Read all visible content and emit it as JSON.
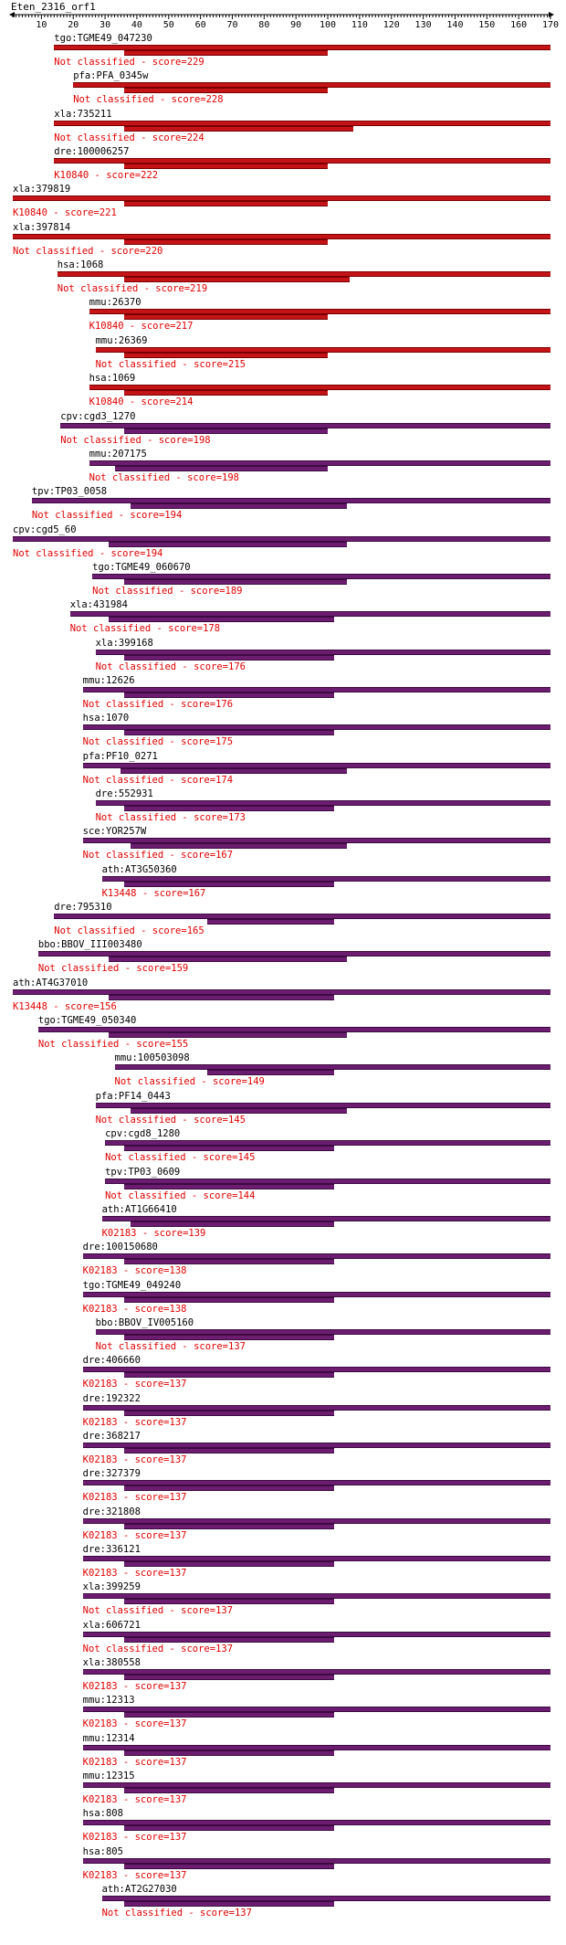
{
  "title": "Eten_2316_orf1",
  "axis": {
    "min": 1,
    "max": 170,
    "ticks": [
      10,
      20,
      30,
      40,
      50,
      60,
      70,
      80,
      90,
      100,
      110,
      120,
      130,
      140,
      150,
      160,
      170
    ]
  },
  "colors": {
    "label": "#e00000",
    "red_bar": "#c41418",
    "purple_bar": "#6c1d70"
  },
  "hits": [
    {
      "name": "tgo:TGME49_047230",
      "class": "Not classified",
      "score": 229,
      "s": 14,
      "e": 170,
      "qs": 36,
      "qe": 100,
      "color": "red"
    },
    {
      "name": "pfa:PFA_0345w",
      "class": "Not classified",
      "score": 228,
      "s": 20,
      "e": 170,
      "qs": 36,
      "qe": 100,
      "color": "red"
    },
    {
      "name": "xla:735211",
      "class": "Not classified",
      "score": 224,
      "s": 14,
      "e": 170,
      "qs": 36,
      "qe": 108,
      "color": "red"
    },
    {
      "name": "dre:100006257",
      "class": "K10840",
      "score": 222,
      "s": 14,
      "e": 170,
      "qs": 36,
      "qe": 100,
      "color": "red"
    },
    {
      "name": "xla:379819",
      "class": "K10840",
      "score": 221,
      "s": 1,
      "e": 170,
      "qs": 36,
      "qe": 100,
      "color": "red"
    },
    {
      "name": "xla:397814",
      "class": "Not classified",
      "score": 220,
      "s": 1,
      "e": 170,
      "qs": 36,
      "qe": 100,
      "color": "red"
    },
    {
      "name": "hsa:1068",
      "class": "Not classified",
      "score": 219,
      "s": 15,
      "e": 170,
      "qs": 36,
      "qe": 107,
      "color": "red"
    },
    {
      "name": "mmu:26370",
      "class": "K10840",
      "score": 217,
      "s": 25,
      "e": 170,
      "qs": 36,
      "qe": 100,
      "color": "red"
    },
    {
      "name": "mmu:26369",
      "class": "Not classified",
      "score": 215,
      "s": 27,
      "e": 170,
      "qs": 36,
      "qe": 100,
      "color": "red"
    },
    {
      "name": "hsa:1069",
      "class": "K10840",
      "score": 214,
      "s": 25,
      "e": 170,
      "qs": 36,
      "qe": 100,
      "color": "red"
    },
    {
      "name": "cpv:cgd3_1270",
      "class": "Not classified",
      "score": 198,
      "s": 16,
      "e": 170,
      "qs": 36,
      "qe": 100,
      "color": "purple"
    },
    {
      "name": "mmu:207175",
      "class": "Not classified",
      "score": 198,
      "s": 25,
      "e": 170,
      "qs": 33,
      "qe": 100,
      "color": "purple"
    },
    {
      "name": "tpv:TP03_0058",
      "class": "Not classified",
      "score": 194,
      "s": 7,
      "e": 170,
      "qs": 38,
      "qe": 106,
      "color": "purple"
    },
    {
      "name": "cpv:cgd5_60",
      "class": "Not classified",
      "score": 194,
      "s": 1,
      "e": 170,
      "qs": 31,
      "qe": 106,
      "color": "purple"
    },
    {
      "name": "tgo:TGME49_060670",
      "class": "Not classified",
      "score": 189,
      "s": 26,
      "e": 170,
      "qs": 36,
      "qe": 106,
      "color": "purple"
    },
    {
      "name": "xla:431984",
      "class": "Not classified",
      "score": 178,
      "s": 19,
      "e": 170,
      "qs": 31,
      "qe": 102,
      "color": "purple"
    },
    {
      "name": "xla:399168",
      "class": "Not classified",
      "score": 176,
      "s": 27,
      "e": 170,
      "qs": 36,
      "qe": 102,
      "color": "purple"
    },
    {
      "name": "mmu:12626",
      "class": "Not classified",
      "score": 176,
      "s": 23,
      "e": 170,
      "qs": 36,
      "qe": 102,
      "color": "purple"
    },
    {
      "name": "hsa:1070",
      "class": "Not classified",
      "score": 175,
      "s": 23,
      "e": 170,
      "qs": 36,
      "qe": 102,
      "color": "purple"
    },
    {
      "name": "pfa:PF10_0271",
      "class": "Not classified",
      "score": 174,
      "s": 23,
      "e": 170,
      "qs": 35,
      "qe": 106,
      "color": "purple"
    },
    {
      "name": "dre:552931",
      "class": "Not classified",
      "score": 173,
      "s": 27,
      "e": 170,
      "qs": 36,
      "qe": 102,
      "color": "purple"
    },
    {
      "name": "sce:YOR257W",
      "class": "Not classified",
      "score": 167,
      "s": 23,
      "e": 170,
      "qs": 38,
      "qe": 106,
      "color": "purple"
    },
    {
      "name": "ath:AT3G50360",
      "class": "K13448",
      "score": 167,
      "s": 29,
      "e": 170,
      "qs": 36,
      "qe": 102,
      "color": "purple"
    },
    {
      "name": "dre:795310",
      "class": "Not classified",
      "score": 165,
      "s": 14,
      "e": 170,
      "qs": 62,
      "qe": 102,
      "color": "purple"
    },
    {
      "name": "bbo:BBOV_III003480",
      "class": "Not classified",
      "score": 159,
      "s": 9,
      "e": 170,
      "qs": 31,
      "qe": 106,
      "color": "purple"
    },
    {
      "name": "ath:AT4G37010",
      "class": "K13448",
      "score": 156,
      "s": 1,
      "e": 170,
      "qs": 31,
      "qe": 102,
      "color": "purple"
    },
    {
      "name": "tgo:TGME49_050340",
      "class": "Not classified",
      "score": 155,
      "s": 9,
      "e": 170,
      "qs": 31,
      "qe": 106,
      "color": "purple"
    },
    {
      "name": "mmu:100503098",
      "class": "Not classified",
      "score": 149,
      "s": 33,
      "e": 170,
      "qs": 62,
      "qe": 102,
      "color": "purple"
    },
    {
      "name": "pfa:PF14_0443",
      "class": "Not classified",
      "score": 145,
      "s": 27,
      "e": 170,
      "qs": 38,
      "qe": 106,
      "color": "purple"
    },
    {
      "name": "cpv:cgd8_1280",
      "class": "Not classified",
      "score": 145,
      "s": 30,
      "e": 170,
      "qs": 36,
      "qe": 102,
      "color": "purple"
    },
    {
      "name": "tpv:TP03_0609",
      "class": "Not classified",
      "score": 144,
      "s": 30,
      "e": 170,
      "qs": 36,
      "qe": 102,
      "color": "purple"
    },
    {
      "name": "ath:AT1G66410",
      "class": "K02183",
      "score": 139,
      "s": 29,
      "e": 170,
      "qs": 38,
      "qe": 102,
      "color": "purple"
    },
    {
      "name": "dre:100150680",
      "class": "K02183",
      "score": 138,
      "s": 23,
      "e": 170,
      "qs": 36,
      "qe": 102,
      "color": "purple"
    },
    {
      "name": "tgo:TGME49_049240",
      "class": "K02183",
      "score": 138,
      "s": 23,
      "e": 170,
      "qs": 36,
      "qe": 102,
      "color": "purple"
    },
    {
      "name": "bbo:BBOV_IV005160",
      "class": "Not classified",
      "score": 137,
      "s": 27,
      "e": 170,
      "qs": 36,
      "qe": 102,
      "color": "purple"
    },
    {
      "name": "dre:406660",
      "class": "K02183",
      "score": 137,
      "s": 23,
      "e": 170,
      "qs": 36,
      "qe": 102,
      "color": "purple"
    },
    {
      "name": "dre:192322",
      "class": "K02183",
      "score": 137,
      "s": 23,
      "e": 170,
      "qs": 36,
      "qe": 102,
      "color": "purple"
    },
    {
      "name": "dre:368217",
      "class": "K02183",
      "score": 137,
      "s": 23,
      "e": 170,
      "qs": 36,
      "qe": 102,
      "color": "purple"
    },
    {
      "name": "dre:327379",
      "class": "K02183",
      "score": 137,
      "s": 23,
      "e": 170,
      "qs": 36,
      "qe": 102,
      "color": "purple"
    },
    {
      "name": "dre:321808",
      "class": "K02183",
      "score": 137,
      "s": 23,
      "e": 170,
      "qs": 36,
      "qe": 102,
      "color": "purple"
    },
    {
      "name": "dre:336121",
      "class": "K02183",
      "score": 137,
      "s": 23,
      "e": 170,
      "qs": 36,
      "qe": 102,
      "color": "purple"
    },
    {
      "name": "xla:399259",
      "class": "Not classified",
      "score": 137,
      "s": 23,
      "e": 170,
      "qs": 36,
      "qe": 102,
      "color": "purple"
    },
    {
      "name": "xla:606721",
      "class": "Not classified",
      "score": 137,
      "s": 23,
      "e": 170,
      "qs": 36,
      "qe": 102,
      "color": "purple"
    },
    {
      "name": "xla:380558",
      "class": "K02183",
      "score": 137,
      "s": 23,
      "e": 170,
      "qs": 36,
      "qe": 102,
      "color": "purple"
    },
    {
      "name": "mmu:12313",
      "class": "K02183",
      "score": 137,
      "s": 23,
      "e": 170,
      "qs": 36,
      "qe": 102,
      "color": "purple"
    },
    {
      "name": "mmu:12314",
      "class": "K02183",
      "score": 137,
      "s": 23,
      "e": 170,
      "qs": 36,
      "qe": 102,
      "color": "purple"
    },
    {
      "name": "mmu:12315",
      "class": "K02183",
      "score": 137,
      "s": 23,
      "e": 170,
      "qs": 36,
      "qe": 102,
      "color": "purple"
    },
    {
      "name": "hsa:808",
      "class": "K02183",
      "score": 137,
      "s": 23,
      "e": 170,
      "qs": 36,
      "qe": 102,
      "color": "purple"
    },
    {
      "name": "hsa:805",
      "class": "K02183",
      "score": 137,
      "s": 23,
      "e": 170,
      "qs": 36,
      "qe": 102,
      "color": "purple"
    },
    {
      "name": "ath:AT2G27030",
      "class": "Not classified",
      "score": 137,
      "s": 29,
      "e": 170,
      "qs": 36,
      "qe": 102,
      "color": "purple"
    }
  ]
}
